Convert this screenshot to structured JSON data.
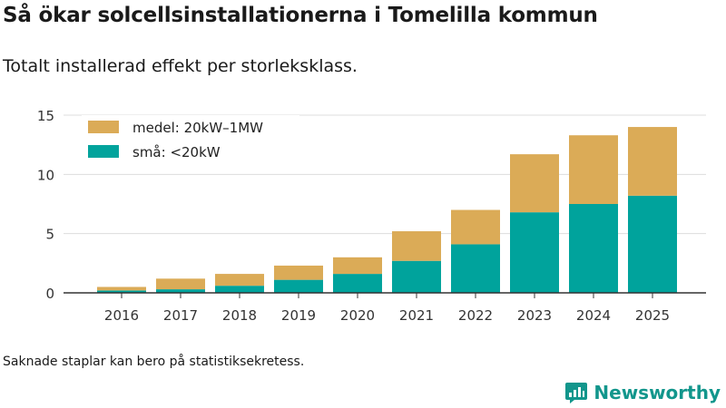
{
  "title": "Så ökar solcellsinstallationerna i Tomelilla kommun",
  "subtitle": "Totalt installerad effekt per storleksklass.",
  "footnote": "Saknade staplar kan bero på statistiksekretess.",
  "brand": "Newsworthy",
  "colors": {
    "small": "#00a39c",
    "medium": "#dbab57",
    "grid": "#dddddd",
    "axis": "#333333",
    "brand": "#12968c"
  },
  "chart_data": {
    "type": "bar",
    "stacked": true,
    "categories": [
      "2016",
      "2017",
      "2018",
      "2019",
      "2020",
      "2021",
      "2022",
      "2023",
      "2024",
      "2025"
    ],
    "series": [
      {
        "name": "små: <20kW",
        "key": "small",
        "values": [
          0.2,
          0.3,
          0.6,
          1.1,
          1.6,
          2.7,
          4.1,
          6.8,
          7.5,
          8.2
        ]
      },
      {
        "name": "medel: 20kW–1MW",
        "key": "medium",
        "values": [
          0.3,
          0.9,
          1.0,
          1.2,
          1.4,
          2.5,
          2.9,
          4.9,
          5.8,
          5.8
        ]
      }
    ],
    "legend_order": [
      "medium",
      "small"
    ],
    "yticks": [
      0,
      5,
      10,
      15
    ],
    "ylim": [
      0,
      15
    ],
    "xlabel": "",
    "ylabel": "",
    "grid": true,
    "legend": "top-left"
  }
}
